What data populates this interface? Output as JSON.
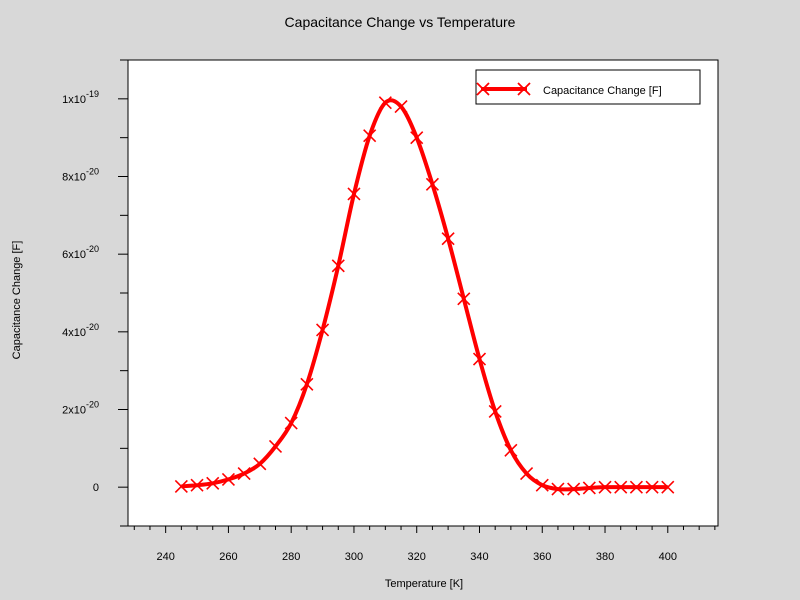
{
  "chart_data": {
    "type": "line",
    "title": "Capacitance Change vs Temperature",
    "xlabel": "Temperature [K]",
    "ylabel": "Capacitance Change [F]",
    "xlim": [
      228,
      416
    ],
    "ylim": [
      -1e-20,
      1.1e-19
    ],
    "x_ticks": [
      240,
      260,
      280,
      300,
      320,
      340,
      360,
      380,
      400
    ],
    "x_tick_labels": [
      "240",
      "260",
      "280",
      "300",
      "320",
      "340",
      "360",
      "380",
      "400"
    ],
    "y_ticks": [
      0,
      2e-20,
      4e-20,
      6e-20,
      8e-20,
      1e-19
    ],
    "y_tick_labels": [
      {
        "mant": "0",
        "exp": ""
      },
      {
        "mant": "2x10",
        "exp": "-20"
      },
      {
        "mant": "4x10",
        "exp": "-20"
      },
      {
        "mant": "6x10",
        "exp": "-20"
      },
      {
        "mant": "8x10",
        "exp": "-20"
      },
      {
        "mant": "1x10",
        "exp": "-19"
      }
    ],
    "grid": false,
    "legend": {
      "position": "top-right",
      "entries": [
        "Capacitance Change [F]"
      ]
    },
    "series": [
      {
        "name": "Capacitance Change [F]",
        "color": "#ff0000",
        "marker": "x",
        "x": [
          245,
          250,
          255,
          260,
          265,
          270,
          275,
          280,
          285,
          290,
          295,
          300,
          305,
          310,
          315,
          320,
          325,
          330,
          335,
          340,
          345,
          350,
          355,
          360,
          365,
          370,
          375,
          380,
          385,
          390,
          395,
          400
        ],
        "y": [
          2e-22,
          5e-22,
          1e-21,
          2e-21,
          3.5e-21,
          6e-21,
          1.05e-20,
          1.65e-20,
          2.65e-20,
          4.05e-20,
          5.7e-20,
          7.55e-20,
          9.05e-20,
          9.9e-20,
          9.8e-20,
          9e-20,
          7.8e-20,
          6.4e-20,
          4.85e-20,
          3.3e-20,
          1.95e-20,
          9.5e-21,
          3.5e-21,
          5e-22,
          -5e-22,
          -5e-22,
          -2e-22,
          0,
          0,
          0,
          0,
          0
        ]
      }
    ]
  }
}
